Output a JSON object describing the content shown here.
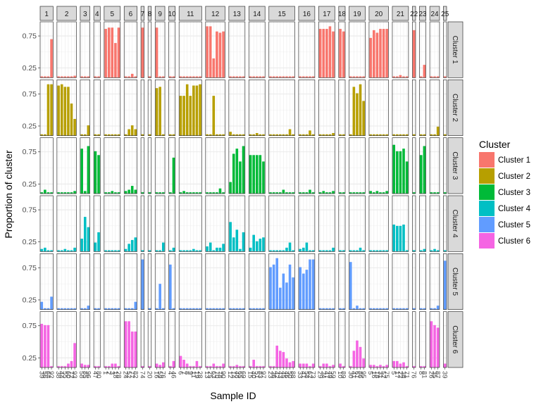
{
  "chart_data": {
    "type": "bar",
    "layout": "facet_grid",
    "xlabel": "Sample ID",
    "ylabel": "Proportion of cluster",
    "ylim": [
      0.1,
      0.97
    ],
    "y_ticks": [
      0.25,
      0.75
    ],
    "y_tick_labels": [
      "0.25",
      "0.75"
    ],
    "legend": {
      "title": "Cluster",
      "position": "right",
      "items": [
        {
          "label": "Cluster 1",
          "color": "#F8766D"
        },
        {
          "label": "Cluster 2",
          "color": "#B79F00"
        },
        {
          "label": "Cluster 3",
          "color": "#00BA38"
        },
        {
          "label": "Cluster 4",
          "color": "#00BFC4"
        },
        {
          "label": "Cluster 5",
          "color": "#619CFF"
        },
        {
          "label": "Cluster 6",
          "color": "#F564E3"
        }
      ]
    },
    "row_strips": [
      "Cluster 1",
      "Cluster 2",
      "Cluster 3",
      "Cluster 4",
      "Cluster 5",
      "Cluster 6"
    ],
    "column_strips": [
      "1",
      "2",
      "3",
      "4",
      "5",
      "6",
      "7",
      "8",
      "9",
      "10",
      "11",
      "12",
      "13",
      "14",
      "15",
      "16",
      "17",
      "18",
      "19",
      "20",
      "21",
      "22",
      "23",
      "24",
      "25"
    ],
    "samples_per_column": [
      4,
      6,
      3,
      2,
      5,
      4,
      1,
      1,
      3,
      2,
      7,
      6,
      5,
      5,
      8,
      5,
      5,
      2,
      5,
      6,
      5,
      1,
      2,
      3,
      1
    ],
    "values": [
      [
        [
          0.12,
          0.12,
          0.12,
          0.7
        ],
        [
          0.12,
          0.12,
          0.12,
          0.12,
          0.12,
          0.13
        ],
        [
          0.12,
          0.12,
          0.12
        ],
        [
          0.12,
          0.12
        ],
        [
          0.86,
          0.88,
          0.88,
          0.64,
          0.88
        ],
        [
          0.12,
          0.12,
          0.16,
          0.12
        ],
        [
          0.88
        ],
        [
          0.12
        ],
        [
          0.88,
          0.12,
          0.12
        ],
        [
          0.12,
          0.12
        ],
        [
          0.12,
          0.12,
          0.12,
          0.12,
          0.12,
          0.12,
          0.12
        ],
        [
          0.9,
          0.9,
          0.4,
          0.82,
          0.8,
          0.82
        ],
        [
          0.12,
          0.12,
          0.12,
          0.12,
          0.12
        ],
        [
          0.12,
          0.12,
          0.12,
          0.12,
          0.12
        ],
        [
          0.12,
          0.12,
          0.12,
          0.12,
          0.12,
          0.12,
          0.12,
          0.12
        ],
        [
          0.12,
          0.12,
          0.12,
          0.12,
          0.12
        ],
        [
          0.86,
          0.86,
          0.86,
          0.9,
          0.82
        ],
        [
          0.86,
          0.82
        ],
        [
          0.12,
          0.12,
          0.12,
          0.12,
          0.12
        ],
        [
          0.72,
          0.84,
          0.8,
          0.86,
          0.86,
          0.86
        ],
        [
          0.12,
          0.12,
          0.14,
          0.12,
          0.12
        ],
        [
          0.84
        ],
        [
          0.12,
          0.3
        ],
        [
          0.12,
          0.12,
          0.12
        ],
        [
          0.12
        ]
      ],
      [
        [
          0.12,
          0.12,
          0.9,
          0.9
        ],
        [
          0.88,
          0.9,
          0.86,
          0.86,
          0.6,
          0.36
        ],
        [
          0.12,
          0.12,
          0.26
        ],
        [
          0.12,
          0.12
        ],
        [
          0.12,
          0.12,
          0.12,
          0.12,
          0.12
        ],
        [
          0.12,
          0.2,
          0.26,
          0.2
        ],
        [
          0.12
        ],
        [
          0.12
        ],
        [
          0.84,
          0.86,
          0.12
        ],
        [
          0.12,
          0.12
        ],
        [
          0.72,
          0.72,
          0.9,
          0.72,
          0.88,
          0.88,
          0.9
        ],
        [
          0.12,
          0.12,
          0.72,
          0.12,
          0.12,
          0.12
        ],
        [
          0.16,
          0.12,
          0.12,
          0.12,
          0.12
        ],
        [
          0.12,
          0.12,
          0.14,
          0.12,
          0.12
        ],
        [
          0.12,
          0.12,
          0.12,
          0.12,
          0.12,
          0.12,
          0.2,
          0.12
        ],
        [
          0.12,
          0.12,
          0.12,
          0.18,
          0.12
        ],
        [
          0.12,
          0.12,
          0.12,
          0.12,
          0.14
        ],
        [
          0.12,
          0.12
        ],
        [
          0.12,
          0.86,
          0.76,
          0.9,
          0.64
        ],
        [
          0.12,
          0.12,
          0.12,
          0.12,
          0.12,
          0.12
        ],
        [
          0.12,
          0.12,
          0.12,
          0.12,
          0.12
        ],
        [
          0.12
        ],
        [
          0.12,
          0.12
        ],
        [
          0.12,
          0.12,
          0.24
        ],
        [
          0.12
        ]
      ],
      [
        [
          0.12,
          0.16,
          0.12,
          0.12
        ],
        [
          0.12,
          0.12,
          0.12,
          0.12,
          0.12,
          0.14
        ],
        [
          0.8,
          0.14,
          0.84
        ],
        [
          0.76,
          0.7
        ],
        [
          0.12,
          0.12,
          0.14,
          0.12,
          0.12
        ],
        [
          0.14,
          0.16,
          0.22,
          0.16
        ],
        [
          0.12
        ],
        [
          0.12
        ],
        [
          0.12,
          0.12,
          0.12
        ],
        [
          0.12,
          0.66
        ],
        [
          0.12,
          0.14,
          0.12,
          0.12,
          0.12,
          0.12,
          0.12
        ],
        [
          0.12,
          0.12,
          0.12,
          0.12,
          0.18,
          0.12
        ],
        [
          0.28,
          0.72,
          0.8,
          0.6,
          0.84
        ],
        [
          0.7,
          0.7,
          0.7,
          0.7,
          0.6
        ],
        [
          0.12,
          0.12,
          0.12,
          0.12,
          0.16,
          0.12,
          0.12,
          0.12
        ],
        [
          0.12,
          0.12,
          0.12,
          0.16,
          0.12
        ],
        [
          0.12,
          0.14,
          0.12,
          0.12,
          0.14
        ],
        [
          0.12,
          0.12
        ],
        [
          0.12,
          0.12,
          0.12,
          0.12,
          0.12
        ],
        [
          0.14,
          0.12,
          0.14,
          0.12,
          0.12,
          0.14
        ],
        [
          0.86,
          0.76,
          0.76,
          0.8,
          0.6
        ],
        [
          0.12
        ],
        [
          0.7,
          0.84
        ],
        [
          0.12,
          0.12,
          0.12
        ],
        [
          0.12
        ]
      ],
      [
        [
          0.14,
          0.16,
          0.12,
          0.12
        ],
        [
          0.12,
          0.12,
          0.14,
          0.12,
          0.12,
          0.16
        ],
        [
          0.3,
          0.64,
          0.48
        ],
        [
          0.24,
          0.4
        ],
        [
          0.12,
          0.12,
          0.12,
          0.12,
          0.12
        ],
        [
          0.14,
          0.22,
          0.28,
          0.32
        ],
        [
          0.12
        ],
        [
          0.12
        ],
        [
          0.12,
          0.12,
          0.24
        ],
        [
          0.12,
          0.16
        ],
        [
          0.12,
          0.12,
          0.12,
          0.12,
          0.14,
          0.12,
          0.12
        ],
        [
          0.18,
          0.24,
          0.12,
          0.16,
          0.16,
          0.22
        ],
        [
          0.56,
          0.32,
          0.44,
          0.14,
          0.4
        ],
        [
          0.16,
          0.36,
          0.26,
          0.3,
          0.32
        ],
        [
          0.12,
          0.12,
          0.12,
          0.12,
          0.12,
          0.16,
          0.24,
          0.12
        ],
        [
          0.14,
          0.16,
          0.24,
          0.12,
          0.12
        ],
        [
          0.12,
          0.12,
          0.12,
          0.12,
          0.16
        ],
        [
          0.12,
          0.12
        ],
        [
          0.12,
          0.12,
          0.12,
          0.16,
          0.12
        ],
        [
          0.12,
          0.12,
          0.12,
          0.12,
          0.12,
          0.12
        ],
        [
          0.52,
          0.5,
          0.5,
          0.52,
          0.12
        ],
        [
          0.12
        ],
        [
          0.12,
          0.14
        ],
        [
          0.12,
          0.14,
          0.12
        ],
        [
          0.12
        ]
      ],
      [
        [
          0.22,
          0.12,
          0.12,
          0.3
        ],
        [
          0.12,
          0.12,
          0.12,
          0.12,
          0.12,
          0.12
        ],
        [
          0.12,
          0.12,
          0.16
        ],
        [
          0.12,
          0.12
        ],
        [
          0.12,
          0.12,
          0.12,
          0.12,
          0.12
        ],
        [
          0.12,
          0.12,
          0.12,
          0.22
        ],
        [
          0.88
        ],
        [
          0.12
        ],
        [
          0.12,
          0.5,
          0.12
        ],
        [
          0.8,
          0.12
        ],
        [
          0.12,
          0.12,
          0.12,
          0.12,
          0.12,
          0.12,
          0.12
        ],
        [
          0.12,
          0.12,
          0.12,
          0.12,
          0.12,
          0.12
        ],
        [
          0.12,
          0.12,
          0.12,
          0.12,
          0.12
        ],
        [
          0.12,
          0.12,
          0.12,
          0.12,
          0.12
        ],
        [
          0.76,
          0.8,
          0.9,
          0.44,
          0.66,
          0.52,
          0.8,
          0.6
        ],
        [
          0.76,
          0.66,
          0.72,
          0.88,
          0.88
        ],
        [
          0.12,
          0.12,
          0.12,
          0.12,
          0.12
        ],
        [
          0.12,
          0.12
        ],
        [
          0.84,
          0.12,
          0.16,
          0.12,
          0.12
        ],
        [
          0.12,
          0.12,
          0.12,
          0.12,
          0.12,
          0.12
        ],
        [
          0.12,
          0.12,
          0.12,
          0.12,
          0.12
        ],
        [
          0.12
        ],
        [
          0.12,
          0.12
        ],
        [
          0.12,
          0.12,
          0.16
        ],
        [
          0.86
        ]
      ],
      [
        [
          0.78,
          0.76,
          0.76,
          0.12
        ],
        [
          0.12,
          0.12,
          0.12,
          0.16,
          0.2,
          0.48
        ],
        [
          0.16,
          0.14,
          0.14
        ],
        [
          0.12,
          0.12
        ],
        [
          0.12,
          0.12,
          0.16,
          0.16,
          0.12
        ],
        [
          0.82,
          0.82,
          0.66,
          0.66
        ],
        [
          0.12
        ],
        [
          0.12
        ],
        [
          0.16,
          0.14,
          0.18
        ],
        [
          0.12,
          0.2
        ],
        [
          0.28,
          0.22,
          0.16,
          0.12,
          0.12,
          0.2,
          0.12
        ],
        [
          0.12,
          0.12,
          0.16,
          0.12,
          0.12,
          0.16
        ],
        [
          0.12,
          0.12,
          0.14,
          0.12,
          0.12
        ],
        [
          0.12,
          0.22,
          0.12,
          0.12,
          0.12
        ],
        [
          0.12,
          0.12,
          0.44,
          0.36,
          0.34,
          0.24,
          0.18,
          0.2
        ],
        [
          0.16,
          0.16,
          0.16,
          0.12,
          0.16
        ],
        [
          0.12,
          0.16,
          0.16,
          0.12,
          0.14
        ],
        [
          0.16,
          0.12
        ],
        [
          0.12,
          0.36,
          0.52,
          0.42,
          0.24
        ],
        [
          0.14,
          0.14,
          0.12,
          0.14,
          0.12,
          0.14
        ],
        [
          0.2,
          0.2,
          0.16,
          0.18,
          0.12
        ],
        [
          0.12
        ],
        [
          0.12,
          0.12
        ],
        [
          0.82,
          0.76,
          0.72
        ],
        [
          0.16
        ]
      ]
    ],
    "sample_labels": [
      [
        "39",
        "56",
        "64",
        "92"
      ],
      [
        "38",
        "44",
        "55",
        "60",
        "72",
        "93"
      ],
      [
        "58",
        "85",
        "96"
      ],
      [
        "47",
        "80"
      ],
      [
        "1",
        "2",
        "3",
        "18",
        "28"
      ],
      [
        "24",
        "52",
        "77",
        "82"
      ],
      [
        "74"
      ],
      [
        "20"
      ],
      [
        "16",
        "59",
        "76"
      ],
      [
        "4",
        "46"
      ],
      [
        "6",
        "7",
        "8",
        "9",
        "11",
        "19",
        "28"
      ],
      [
        "13",
        "25",
        "63",
        "70",
        "78",
        "90"
      ],
      [
        "12",
        "14",
        "48",
        "65",
        "69"
      ],
      [
        "15",
        "40",
        "51",
        "83",
        "97"
      ],
      [
        "23",
        "36",
        "42",
        "43",
        "45",
        "46",
        "50",
        "88"
      ],
      [
        "33",
        "41",
        "54",
        "62",
        "73"
      ],
      [
        "29",
        "34",
        "47",
        "49",
        "59"
      ],
      [
        "10",
        "89"
      ],
      [
        "30",
        "41",
        "61",
        "86",
        "95"
      ],
      [
        "5",
        "16",
        "18",
        "31",
        "52",
        "75"
      ],
      [
        "5",
        "17",
        "22",
        "38",
        "71"
      ],
      [
        "76"
      ],
      [
        "8",
        "81"
      ],
      [
        "26",
        "35",
        "87"
      ],
      [
        "39"
      ]
    ]
  }
}
